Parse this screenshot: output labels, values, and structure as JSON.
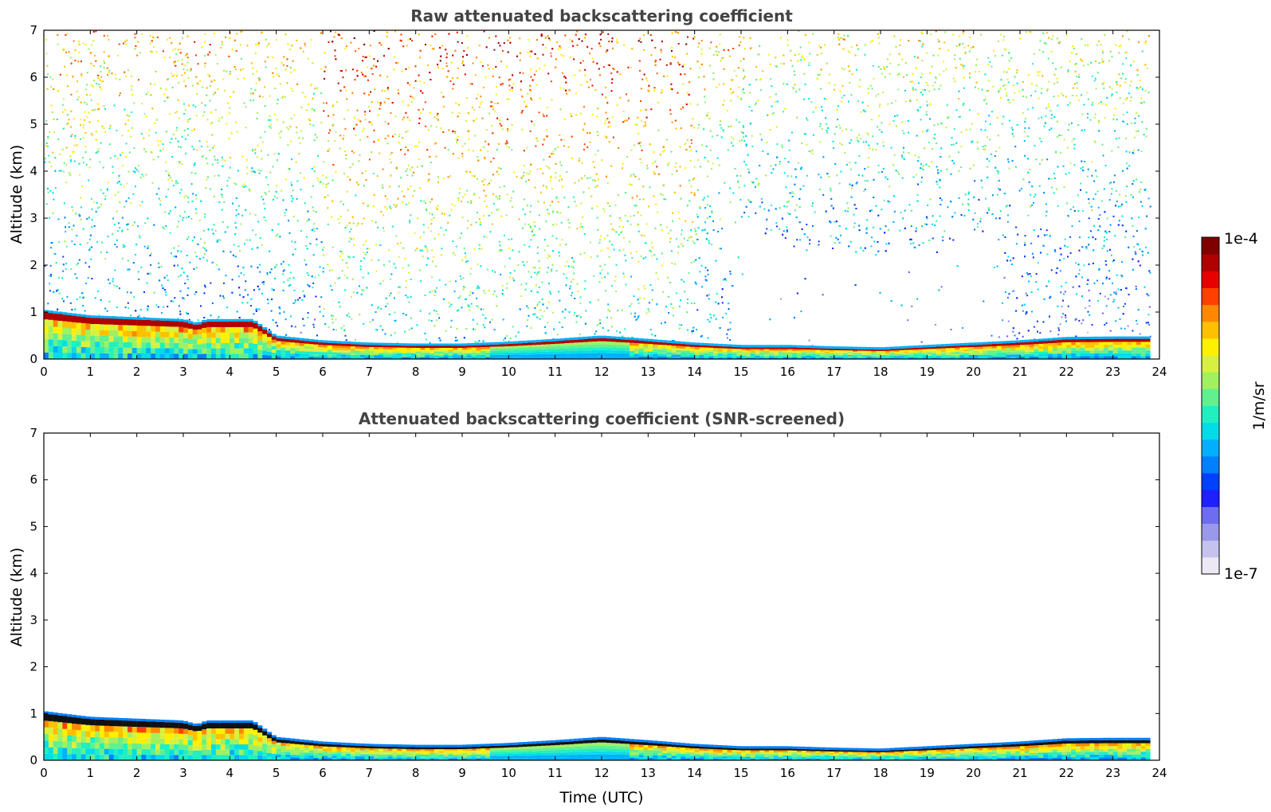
{
  "chart_data": [
    {
      "type": "heatmap",
      "title": "Raw attenuated backscattering coefficient",
      "xlabel": "",
      "ylabel": "Altitude (km)",
      "xlim": [
        0,
        24
      ],
      "ylim": [
        0,
        7
      ],
      "xticks": [
        "0",
        "1",
        "2",
        "3",
        "4",
        "5",
        "6",
        "7",
        "8",
        "9",
        "10",
        "11",
        "12",
        "13",
        "14",
        "15",
        "16",
        "17",
        "18",
        "19",
        "20",
        "21",
        "22",
        "23",
        "24"
      ],
      "yticks": [
        "0",
        "1",
        "2",
        "3",
        "4",
        "5",
        "6",
        "7"
      ],
      "layer_top_km": [
        [
          0,
          1.0
        ],
        [
          1,
          0.88
        ],
        [
          2,
          0.84
        ],
        [
          3,
          0.8
        ],
        [
          3.3,
          0.72
        ],
        [
          3.5,
          0.8
        ],
        [
          4.5,
          0.8
        ],
        [
          5,
          0.45
        ],
        [
          6,
          0.35
        ],
        [
          7,
          0.3
        ],
        [
          8,
          0.28
        ],
        [
          9,
          0.28
        ],
        [
          10,
          0.32
        ],
        [
          11,
          0.38
        ],
        [
          12,
          0.45
        ],
        [
          13,
          0.38
        ],
        [
          14,
          0.3
        ],
        [
          15,
          0.25
        ],
        [
          16,
          0.25
        ],
        [
          17,
          0.22
        ],
        [
          18,
          0.2
        ],
        [
          19,
          0.25
        ],
        [
          20,
          0.3
        ],
        [
          21,
          0.35
        ],
        [
          22,
          0.42
        ],
        [
          23,
          0.43
        ],
        [
          23.8,
          0.43
        ]
      ],
      "noise_note": "noisy returns above boundary layer"
    },
    {
      "type": "heatmap",
      "title": "Attenuated backscattering coefficient (SNR-screened)",
      "xlabel": "Time (UTC)",
      "ylabel": "Altitude (km)",
      "xlim": [
        0,
        24
      ],
      "ylim": [
        0,
        7
      ],
      "xticks": [
        "0",
        "1",
        "2",
        "3",
        "4",
        "5",
        "6",
        "7",
        "8",
        "9",
        "10",
        "11",
        "12",
        "13",
        "14",
        "15",
        "16",
        "17",
        "18",
        "19",
        "20",
        "21",
        "22",
        "23",
        "24"
      ],
      "yticks": [
        "0",
        "1",
        "2",
        "3",
        "4",
        "5",
        "6",
        "7"
      ],
      "layer_top_km": [
        [
          0,
          1.0
        ],
        [
          1,
          0.88
        ],
        [
          2,
          0.84
        ],
        [
          3,
          0.8
        ],
        [
          3.3,
          0.72
        ],
        [
          3.5,
          0.8
        ],
        [
          4.5,
          0.8
        ],
        [
          5,
          0.45
        ],
        [
          6,
          0.35
        ],
        [
          7,
          0.3
        ],
        [
          8,
          0.28
        ],
        [
          9,
          0.28
        ],
        [
          10,
          0.32
        ],
        [
          11,
          0.38
        ],
        [
          12,
          0.45
        ],
        [
          13,
          0.38
        ],
        [
          14,
          0.3
        ],
        [
          15,
          0.25
        ],
        [
          16,
          0.25
        ],
        [
          17,
          0.22
        ],
        [
          18,
          0.2
        ],
        [
          19,
          0.25
        ],
        [
          20,
          0.3
        ],
        [
          21,
          0.35
        ],
        [
          22,
          0.42
        ],
        [
          23,
          0.43
        ],
        [
          23.8,
          0.43
        ]
      ]
    }
  ],
  "colorbar": {
    "label": "1/m/sr",
    "max_label": "1e-4",
    "min_label": "1e-7",
    "colors": [
      "#ece9f4",
      "#c5c3ee",
      "#9a98ea",
      "#6e6cf0",
      "#1f1fff",
      "#0040ff",
      "#0080ff",
      "#00b0ff",
      "#00dde8",
      "#20f0c0",
      "#60f090",
      "#a0f060",
      "#d8f040",
      "#fff000",
      "#ffc000",
      "#ff8800",
      "#ff4000",
      "#e80000",
      "#b00000",
      "#800000"
    ]
  }
}
